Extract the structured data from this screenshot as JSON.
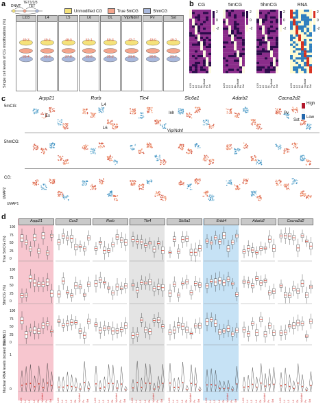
{
  "panel_a": {
    "label": "a",
    "schematic": {
      "tet": "TET1/2/3",
      "dnmt": "DNMT",
      "tet_short": "TET"
    },
    "legend": [
      {
        "label": "Unmodified CG",
        "color": "#f5e27a"
      },
      {
        "label": "True 5mCG",
        "color": "#f4a58c"
      },
      {
        "label": "5hmCG",
        "color": "#a9b8dc"
      }
    ],
    "ylabel": "Single cell levels of CG modifications (%)",
    "cell_types": [
      "L2/3",
      "L4",
      "L5",
      "L6",
      "DL",
      "Vip/Ndnf",
      "Pv",
      "Sst"
    ],
    "mcg_values": [
      "49.3",
      "49.4",
      "48.9",
      "51.1",
      "50.3",
      "42.7",
      "43.9",
      "49.2"
    ],
    "hmcg_values": [
      "25.4",
      "25.6",
      "27.8",
      "25.6",
      "25.2",
      "21.6",
      "20.5",
      "21.7"
    ]
  },
  "panel_b": {
    "label": "b",
    "heatmaps": [
      {
        "title": "CG",
        "scale": [
          "2",
          "0",
          "-2"
        ]
      },
      {
        "title": "5mCG",
        "scale": [
          "2",
          "0",
          "-2"
        ]
      },
      {
        "title": "5hmCG",
        "scale": [
          "2",
          "0",
          "-2"
        ]
      },
      {
        "title": "RNA",
        "scale": [
          "2",
          "0",
          "-2"
        ]
      }
    ],
    "xticks": [
      "L2/3",
      "L4",
      "L5",
      "L6",
      "DL",
      "Vip/Ndnf",
      "Pv",
      "Sst"
    ]
  },
  "panel_c": {
    "label": "c",
    "rows": [
      "5mCG:",
      "5hmCG:",
      "CG:"
    ],
    "genes": [
      "Arpp21",
      "Rorb",
      "Tle4",
      "Slc6a1",
      "Adarb2",
      "Cacna2d2"
    ],
    "annotations": [
      "Ex",
      "L4",
      "L6",
      "Inh",
      "Vip/Ndnf",
      "Pv",
      "Sst"
    ],
    "colorbar": {
      "high": "High",
      "low": "Low"
    },
    "axes": {
      "x": "UMAP1",
      "y": "UMAP2"
    }
  },
  "panel_d": {
    "label": "d",
    "genes": [
      "Arpp21",
      "Cux2",
      "Rorb",
      "Tle4",
      "Slc6a1",
      "Erbb4",
      "Adarb2",
      "Cacna2d2"
    ],
    "row_labels": [
      "True 5mCG (%)",
      "5hmCG (%)",
      "CG (%)",
      "Nuclear RNA levels (scaled max to 1)"
    ],
    "yticks": [
      "100",
      "75",
      "50",
      "25",
      "0"
    ],
    "rna_yticks": [
      "1",
      "0"
    ],
    "xticks": [
      "L2/3",
      "L4",
      "L5",
      "L6",
      "DL",
      "Vip/Ndnf",
      "Pv",
      "Sst"
    ],
    "highlight": {
      "pink": "#f7c6cf",
      "gray": "#e4e4e4",
      "blue": "#c6e2f5"
    }
  }
}
